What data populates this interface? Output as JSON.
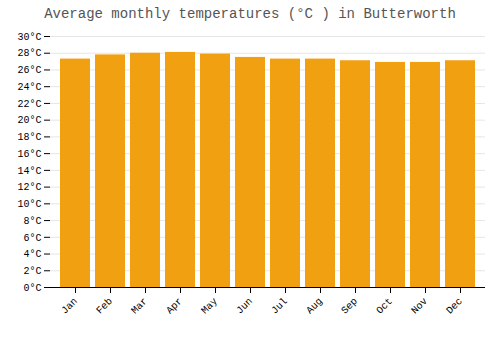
{
  "chart_data": {
    "type": "bar",
    "title": "Average monthly temperatures (°C ) in Butterworth",
    "categories": [
      "Jan",
      "Feb",
      "Mar",
      "Apr",
      "May",
      "Jun",
      "Jul",
      "Aug",
      "Sep",
      "Oct",
      "Nov",
      "Dec"
    ],
    "values": [
      27.3,
      27.8,
      28.0,
      28.1,
      27.9,
      27.5,
      27.3,
      27.3,
      27.1,
      26.9,
      26.9,
      27.1
    ],
    "color": "#F0A010",
    "ylim": [
      0,
      30
    ],
    "yticks": [
      {
        "value": 0,
        "label": "0°C"
      },
      {
        "value": 2,
        "label": "2°C"
      },
      {
        "value": 4,
        "label": "4°C"
      },
      {
        "value": 6,
        "label": "6°C"
      },
      {
        "value": 8,
        "label": "8°C"
      },
      {
        "value": 10,
        "label": "10°C"
      },
      {
        "value": 12,
        "label": "12°C"
      },
      {
        "value": 14,
        "label": "14°C"
      },
      {
        "value": 16,
        "label": "16°C"
      },
      {
        "value": 18,
        "label": "18°C"
      },
      {
        "value": 20,
        "label": "20°C"
      },
      {
        "value": 22,
        "label": "22°C"
      },
      {
        "value": 24,
        "label": "24°C"
      },
      {
        "value": 26,
        "label": "26°C"
      },
      {
        "value": 28,
        "label": "28°C"
      },
      {
        "value": 30,
        "label": "30°C"
      }
    ],
    "grid": true
  }
}
